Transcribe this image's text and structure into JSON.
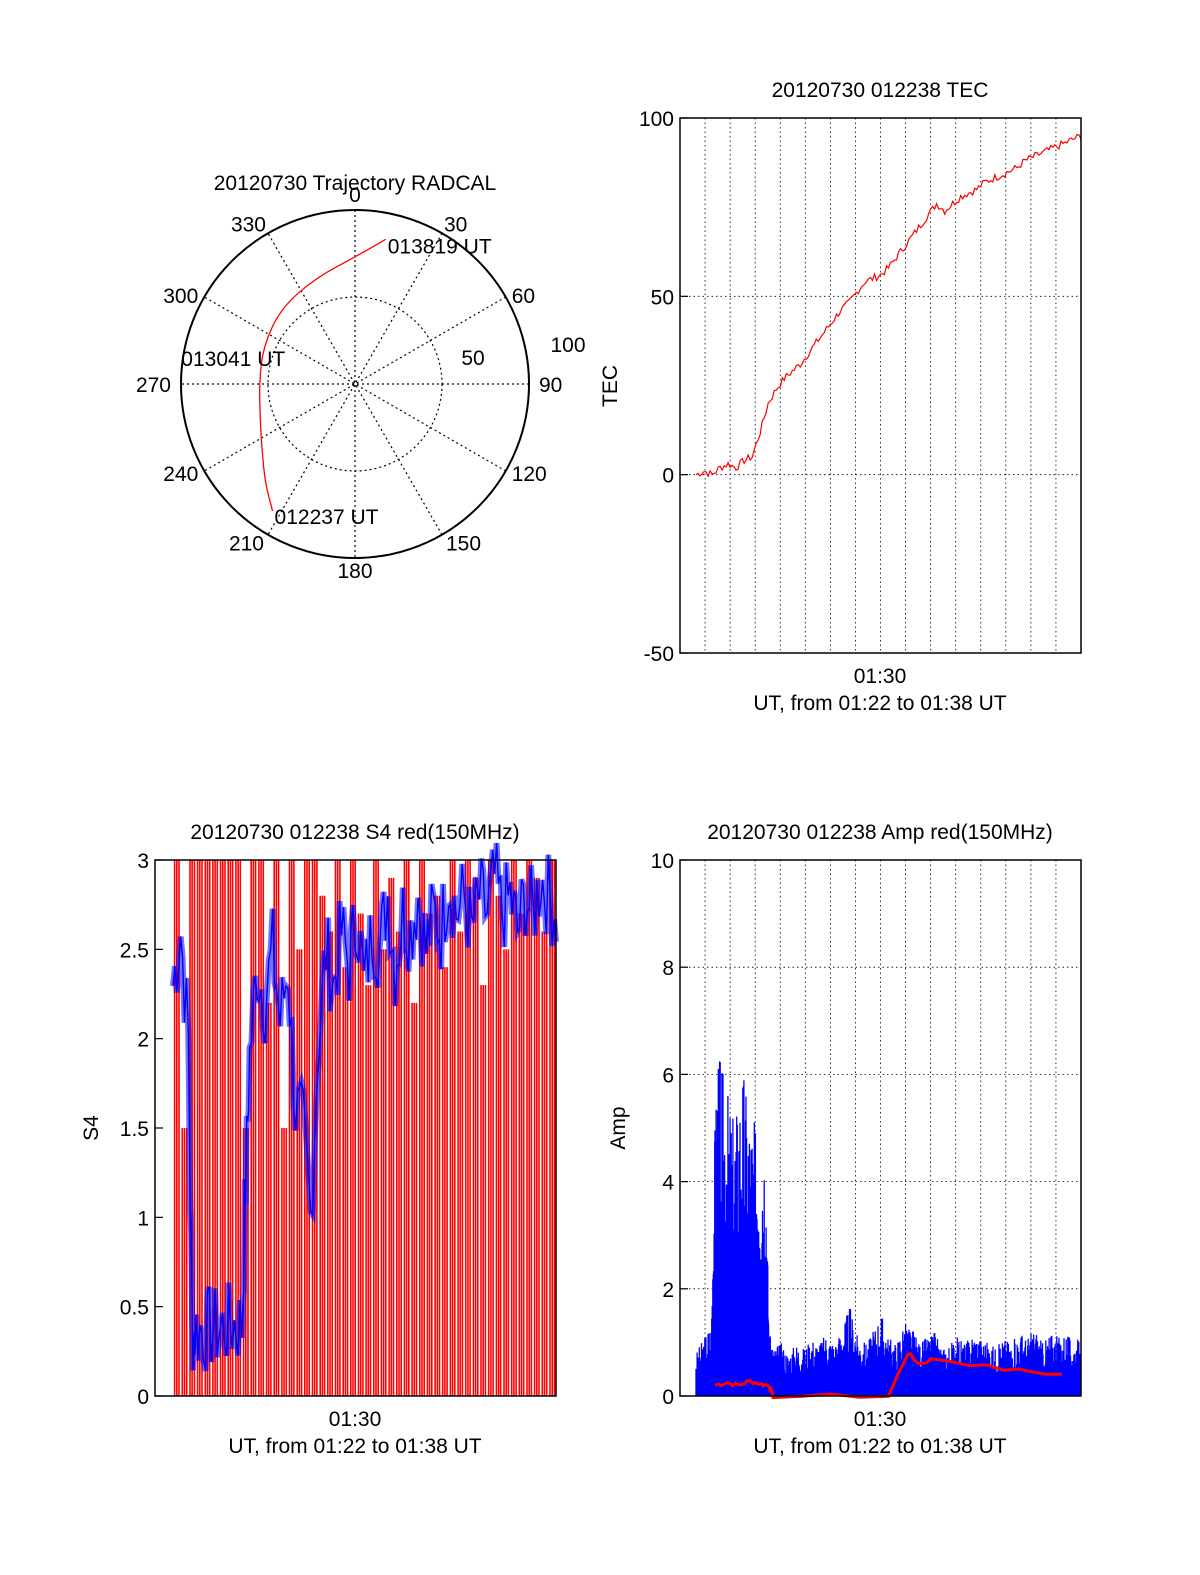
{
  "chart_data": [
    {
      "id": "trajectory",
      "type": "polar",
      "title": "20120730 Trajectory RADCAL",
      "azimuth_labels": [
        "0",
        "30",
        "60",
        "90",
        "120",
        "150",
        "180",
        "210",
        "240",
        "270",
        "300",
        "330"
      ],
      "radius_labels": [
        "50",
        "100"
      ],
      "grid": true,
      "series": [
        {
          "color": "#ff0000",
          "points": [
            {
              "az": 12,
              "r": 85
            },
            {
              "az": 0,
              "r": 73
            },
            {
              "az": 340,
              "r": 65
            },
            {
              "az": 316,
              "r": 61
            },
            {
              "az": 292,
              "r": 57
            },
            {
              "az": 270,
              "r": 55
            },
            {
              "az": 250,
              "r": 58
            },
            {
              "az": 234,
              "r": 66
            },
            {
              "az": 222,
              "r": 77
            },
            {
              "az": 213,
              "r": 87
            }
          ]
        }
      ],
      "annotations": [
        {
          "text": "013819 UT",
          "az": 12,
          "r": 85
        },
        {
          "text": "013041 UT",
          "az": 270,
          "r": 55
        },
        {
          "text": "012237 UT",
          "az": 213,
          "r": 87
        }
      ]
    },
    {
      "id": "tec",
      "type": "line",
      "title": "20120730 012238 TEC",
      "xlabel": "UT, from 01:22 to 01:38 UT",
      "ylabel": "TEC",
      "x_ticks": [
        "01:30"
      ],
      "y_ticks": [
        "-50",
        "0",
        "50",
        "100"
      ],
      "ylim": [
        -50,
        100
      ],
      "grid": true,
      "series": [
        {
          "color": "#ff0000",
          "x": [
            0.04,
            0.06,
            0.08,
            0.1,
            0.12,
            0.14,
            0.16,
            0.18,
            0.2,
            0.22,
            0.24,
            0.26,
            0.28,
            0.3,
            0.32,
            0.34,
            0.36,
            0.38,
            0.4,
            0.42,
            0.44,
            0.46,
            0.48,
            0.5,
            0.52,
            0.54,
            0.56,
            0.58,
            0.6,
            0.62,
            0.64,
            0.66,
            0.68,
            0.7,
            0.72,
            0.74,
            0.76,
            0.78,
            0.8,
            0.82,
            0.84,
            0.86,
            0.88,
            0.9,
            0.92,
            0.94,
            0.96,
            0.98,
            1.0
          ],
          "y": [
            0,
            1,
            0,
            2,
            3,
            2,
            4,
            5,
            12,
            20,
            24,
            27,
            29,
            31,
            34,
            37,
            40,
            43,
            46,
            48,
            51,
            54,
            55,
            56,
            58,
            61,
            64,
            67,
            70,
            73,
            76,
            74,
            76,
            78,
            79,
            80,
            82,
            83,
            84,
            85,
            86,
            88,
            89,
            90,
            91,
            92,
            93,
            94,
            95
          ]
        }
      ]
    },
    {
      "id": "s4",
      "type": "bar",
      "title": "20120730 012238 S4 red(150MHz)",
      "xlabel": "UT, from 01:22 to 01:38 UT",
      "ylabel": "S4",
      "x_ticks": [
        "01:30"
      ],
      "y_ticks": [
        "0",
        "0.5",
        "1",
        "1.5",
        "2",
        "2.5",
        "3"
      ],
      "ylim": [
        0,
        3
      ],
      "series": [
        {
          "color": "#ff0000",
          "x": [
            0.01,
            0.03,
            0.05,
            0.07,
            0.09,
            0.11,
            0.13,
            0.15,
            0.17,
            0.19,
            0.21,
            0.23,
            0.25,
            0.27,
            0.29,
            0.31,
            0.33,
            0.35,
            0.37,
            0.39,
            0.41,
            0.43,
            0.45,
            0.47,
            0.49,
            0.51,
            0.53,
            0.55,
            0.57,
            0.59,
            0.61,
            0.63,
            0.65,
            0.67,
            0.69,
            0.71,
            0.73,
            0.75,
            0.77,
            0.79,
            0.81,
            0.83,
            0.85,
            0.87,
            0.89,
            0.91,
            0.93,
            0.95,
            0.97,
            0.99
          ],
          "y": [
            3,
            1.5,
            3,
            3,
            3,
            3,
            3,
            3,
            3,
            1.5,
            3,
            3,
            2.2,
            3,
            1.5,
            3,
            2.5,
            3,
            3,
            2.8,
            2.6,
            3,
            2.4,
            3,
            2.7,
            2.3,
            3,
            2.5,
            2.9,
            2.6,
            3,
            2.2,
            3,
            2.7,
            2.8,
            2.4,
            3,
            2.6,
            3,
            2.9,
            2.3,
            3,
            2.8,
            2.5,
            3,
            2.7,
            3,
            2.9,
            2.6,
            3
          ]
        },
        {
          "color": "#0000ff",
          "x": [
            0.0,
            0.02,
            0.04,
            0.05,
            0.06,
            0.08,
            0.1,
            0.12,
            0.14,
            0.16,
            0.18,
            0.19,
            0.2,
            0.22,
            0.24,
            0.26,
            0.28,
            0.3,
            0.32,
            0.34,
            0.36,
            0.38,
            0.4,
            0.42,
            0.44,
            0.46,
            0.48,
            0.5,
            0.52,
            0.54,
            0.56,
            0.58,
            0.6,
            0.62,
            0.64,
            0.66,
            0.68,
            0.7,
            0.72,
            0.74,
            0.76,
            0.78,
            0.8,
            0.82,
            0.84,
            0.86,
            0.88,
            0.9,
            0.92,
            0.94,
            0.96,
            0.98,
            1.0
          ],
          "y": [
            2.3,
            2.6,
            2.0,
            0.35,
            0.37,
            0.36,
            0.38,
            0.37,
            0.39,
            0.4,
            0.4,
            1.2,
            1.9,
            2.4,
            2.2,
            2.5,
            2.1,
            2.4,
            1.6,
            1.5,
            1.0,
            2.0,
            2.5,
            2.3,
            2.6,
            2.4,
            2.7,
            2.3,
            2.6,
            2.5,
            2.8,
            2.4,
            2.7,
            2.6,
            2.8,
            2.5,
            2.7,
            2.6,
            2.9,
            2.7,
            2.8,
            2.6,
            2.8,
            2.7,
            2.9,
            2.7,
            2.8,
            2.6,
            2.8,
            2.7,
            2.9,
            2.8,
            2.7
          ]
        }
      ]
    },
    {
      "id": "amp",
      "type": "area",
      "title": "20120730 012238 Amp red(150MHz)",
      "xlabel": "UT, from 01:22 to 01:38 UT",
      "ylabel": "Amp",
      "x_ticks": [
        "01:30"
      ],
      "y_ticks": [
        "0",
        "2",
        "4",
        "6",
        "8",
        "10"
      ],
      "ylim": [
        0,
        10
      ],
      "grid": true,
      "series": [
        {
          "color": "#0000ff",
          "x": [
            0.0,
            0.02,
            0.04,
            0.05,
            0.06,
            0.08,
            0.1,
            0.12,
            0.14,
            0.16,
            0.18,
            0.19,
            0.2,
            0.22,
            0.24,
            0.26,
            0.28,
            0.3,
            0.32,
            0.34,
            0.36,
            0.38,
            0.4,
            0.42,
            0.44,
            0.46,
            0.48,
            0.5,
            0.52,
            0.54,
            0.56,
            0.58,
            0.6,
            0.62,
            0.64,
            0.66,
            0.68,
            0.7,
            0.72,
            0.74,
            0.76,
            0.78,
            0.8,
            0.82,
            0.84,
            0.86,
            0.88,
            0.9,
            0.92,
            0.94,
            0.96,
            0.98,
            1.0
          ],
          "y": [
            0.8,
            1.1,
            1.4,
            5.5,
            6.5,
            5.8,
            5.2,
            6.3,
            5.4,
            5.0,
            5.1,
            1.2,
            0.9,
            1.0,
            0.8,
            1.0,
            0.9,
            1.1,
            1.0,
            1.2,
            1.0,
            1.3,
            1.7,
            1.1,
            1.0,
            1.2,
            1.6,
            1.1,
            1.0,
            1.4,
            1.3,
            1.0,
            1.1,
            1.2,
            0.9,
            1.0,
            1.1,
            1.0,
            1.2,
            1.1,
            1.0,
            0.9,
            1.1,
            1.0,
            1.2,
            1.1,
            1.3,
            1.0,
            1.2,
            1.1,
            1.2,
            1.0,
            1.1
          ]
        },
        {
          "color": "#ff0000",
          "x": [
            0.05,
            0.08,
            0.11,
            0.14,
            0.17,
            0.19,
            0.2,
            0.5,
            0.55,
            0.58,
            0.62,
            0.8,
            0.95
          ],
          "y": [
            0.2,
            0.25,
            0.2,
            0.28,
            0.22,
            0.2,
            0.0,
            0.0,
            0.8,
            0.6,
            0.7,
            0.5,
            0.4
          ]
        }
      ]
    }
  ]
}
